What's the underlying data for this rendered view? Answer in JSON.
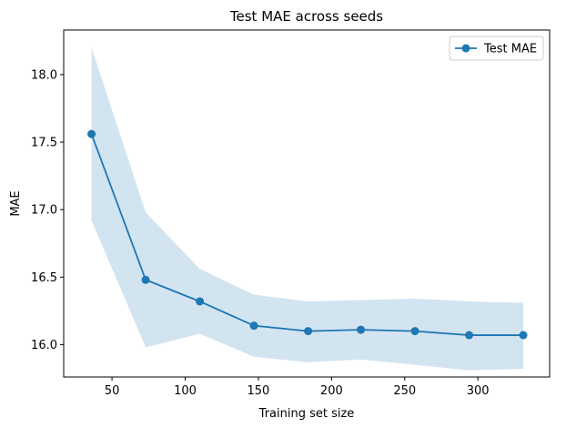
{
  "chart_data": {
    "type": "line",
    "title": "Test MAE across seeds",
    "xlabel": "Training set size",
    "ylabel": "MAE",
    "xlim": [
      17,
      349
    ],
    "ylim": [
      15.76,
      18.33
    ],
    "x_ticks": [
      50,
      100,
      150,
      200,
      250,
      300
    ],
    "y_ticks": [
      16.0,
      16.5,
      17.0,
      17.5,
      18.0
    ],
    "x_tick_labels": [
      "50",
      "100",
      "150",
      "200",
      "250",
      "300"
    ],
    "y_tick_labels": [
      "16.0",
      "16.5",
      "17.0",
      "17.5",
      "18.0"
    ],
    "grid": false,
    "legend_position": "top-right",
    "series": [
      {
        "name": "Test MAE",
        "color": "#1f77b4",
        "marker": "circle",
        "x": [
          36,
          73,
          110,
          147,
          184,
          220,
          257,
          294,
          331
        ],
        "y": [
          17.56,
          16.48,
          16.32,
          16.14,
          16.1,
          16.11,
          16.1,
          16.07,
          16.07
        ],
        "band_upper": [
          18.2,
          16.98,
          16.56,
          16.37,
          16.32,
          16.33,
          16.34,
          16.32,
          16.31
        ],
        "band_lower": [
          16.92,
          15.98,
          16.08,
          15.91,
          15.87,
          15.89,
          15.85,
          15.81,
          15.82
        ],
        "band_color": "#1f77b4",
        "band_opacity": 0.2
      }
    ]
  }
}
